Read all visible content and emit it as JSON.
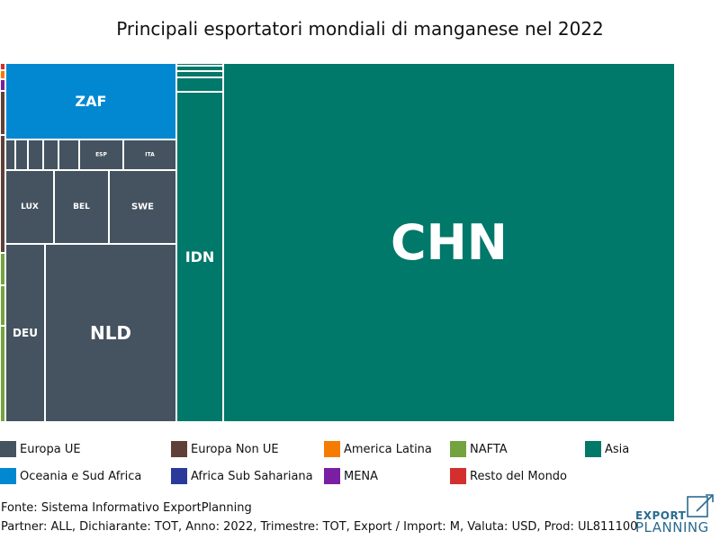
{
  "chart_data": {
    "type": "treemap",
    "title": "Principali esportatori mondiali di manganese nel 2022",
    "colors": {
      "Europa UE": "#44535f",
      "Europa Non UE": "#5e4039",
      "America Latina": "#f57c00",
      "NAFTA": "#72a33e",
      "Asia": "#00786a",
      "Oceania e Sud Africa": "#0288d1",
      "Africa Sub Sahariana": "#2b3a9a",
      "MENA": "#7b1fa2",
      "Resto del Mondo": "#d32f2f"
    },
    "legend": [
      {
        "label": "Europa UE",
        "color": "#44535f"
      },
      {
        "label": "Europa Non UE",
        "color": "#5e4039"
      },
      {
        "label": "America Latina",
        "color": "#f57c00"
      },
      {
        "label": "NAFTA",
        "color": "#72a33e"
      },
      {
        "label": "Asia",
        "color": "#00786a"
      },
      {
        "label": "Oceania e Sud Africa",
        "color": "#0288d1"
      },
      {
        "label": "Africa Sub Sahariana",
        "color": "#2b3a9a"
      },
      {
        "label": "MENA",
        "color": "#7b1fa2"
      },
      {
        "label": "Resto del Mondo",
        "color": "#d32f2f"
      }
    ],
    "labeled_tiles": [
      {
        "label": "CHN",
        "group": "Asia"
      },
      {
        "label": "IDN",
        "group": "Asia"
      },
      {
        "label": "ZAF",
        "group": "Oceania e Sud Africa"
      },
      {
        "label": "NLD",
        "group": "Europa UE"
      },
      {
        "label": "DEU",
        "group": "Europa UE"
      },
      {
        "label": "LUX",
        "group": "Europa UE"
      },
      {
        "label": "BEL",
        "group": "Europa UE"
      },
      {
        "label": "SWE",
        "group": "Europa UE"
      },
      {
        "label": "ESP",
        "group": "Europa UE"
      },
      {
        "label": "ITA",
        "group": "Europa UE"
      }
    ]
  },
  "footer": {
    "source": "Fonte: Sistema Informativo ExportPlanning",
    "partner": "Partner: ALL, Dichiarante: TOT, Anno: 2022, Trimestre: TOT, Export / Import: M, Valuta: USD, Prod: UL811100"
  },
  "logo": {
    "line1": "EXPORT",
    "line2": "PLANNING"
  }
}
